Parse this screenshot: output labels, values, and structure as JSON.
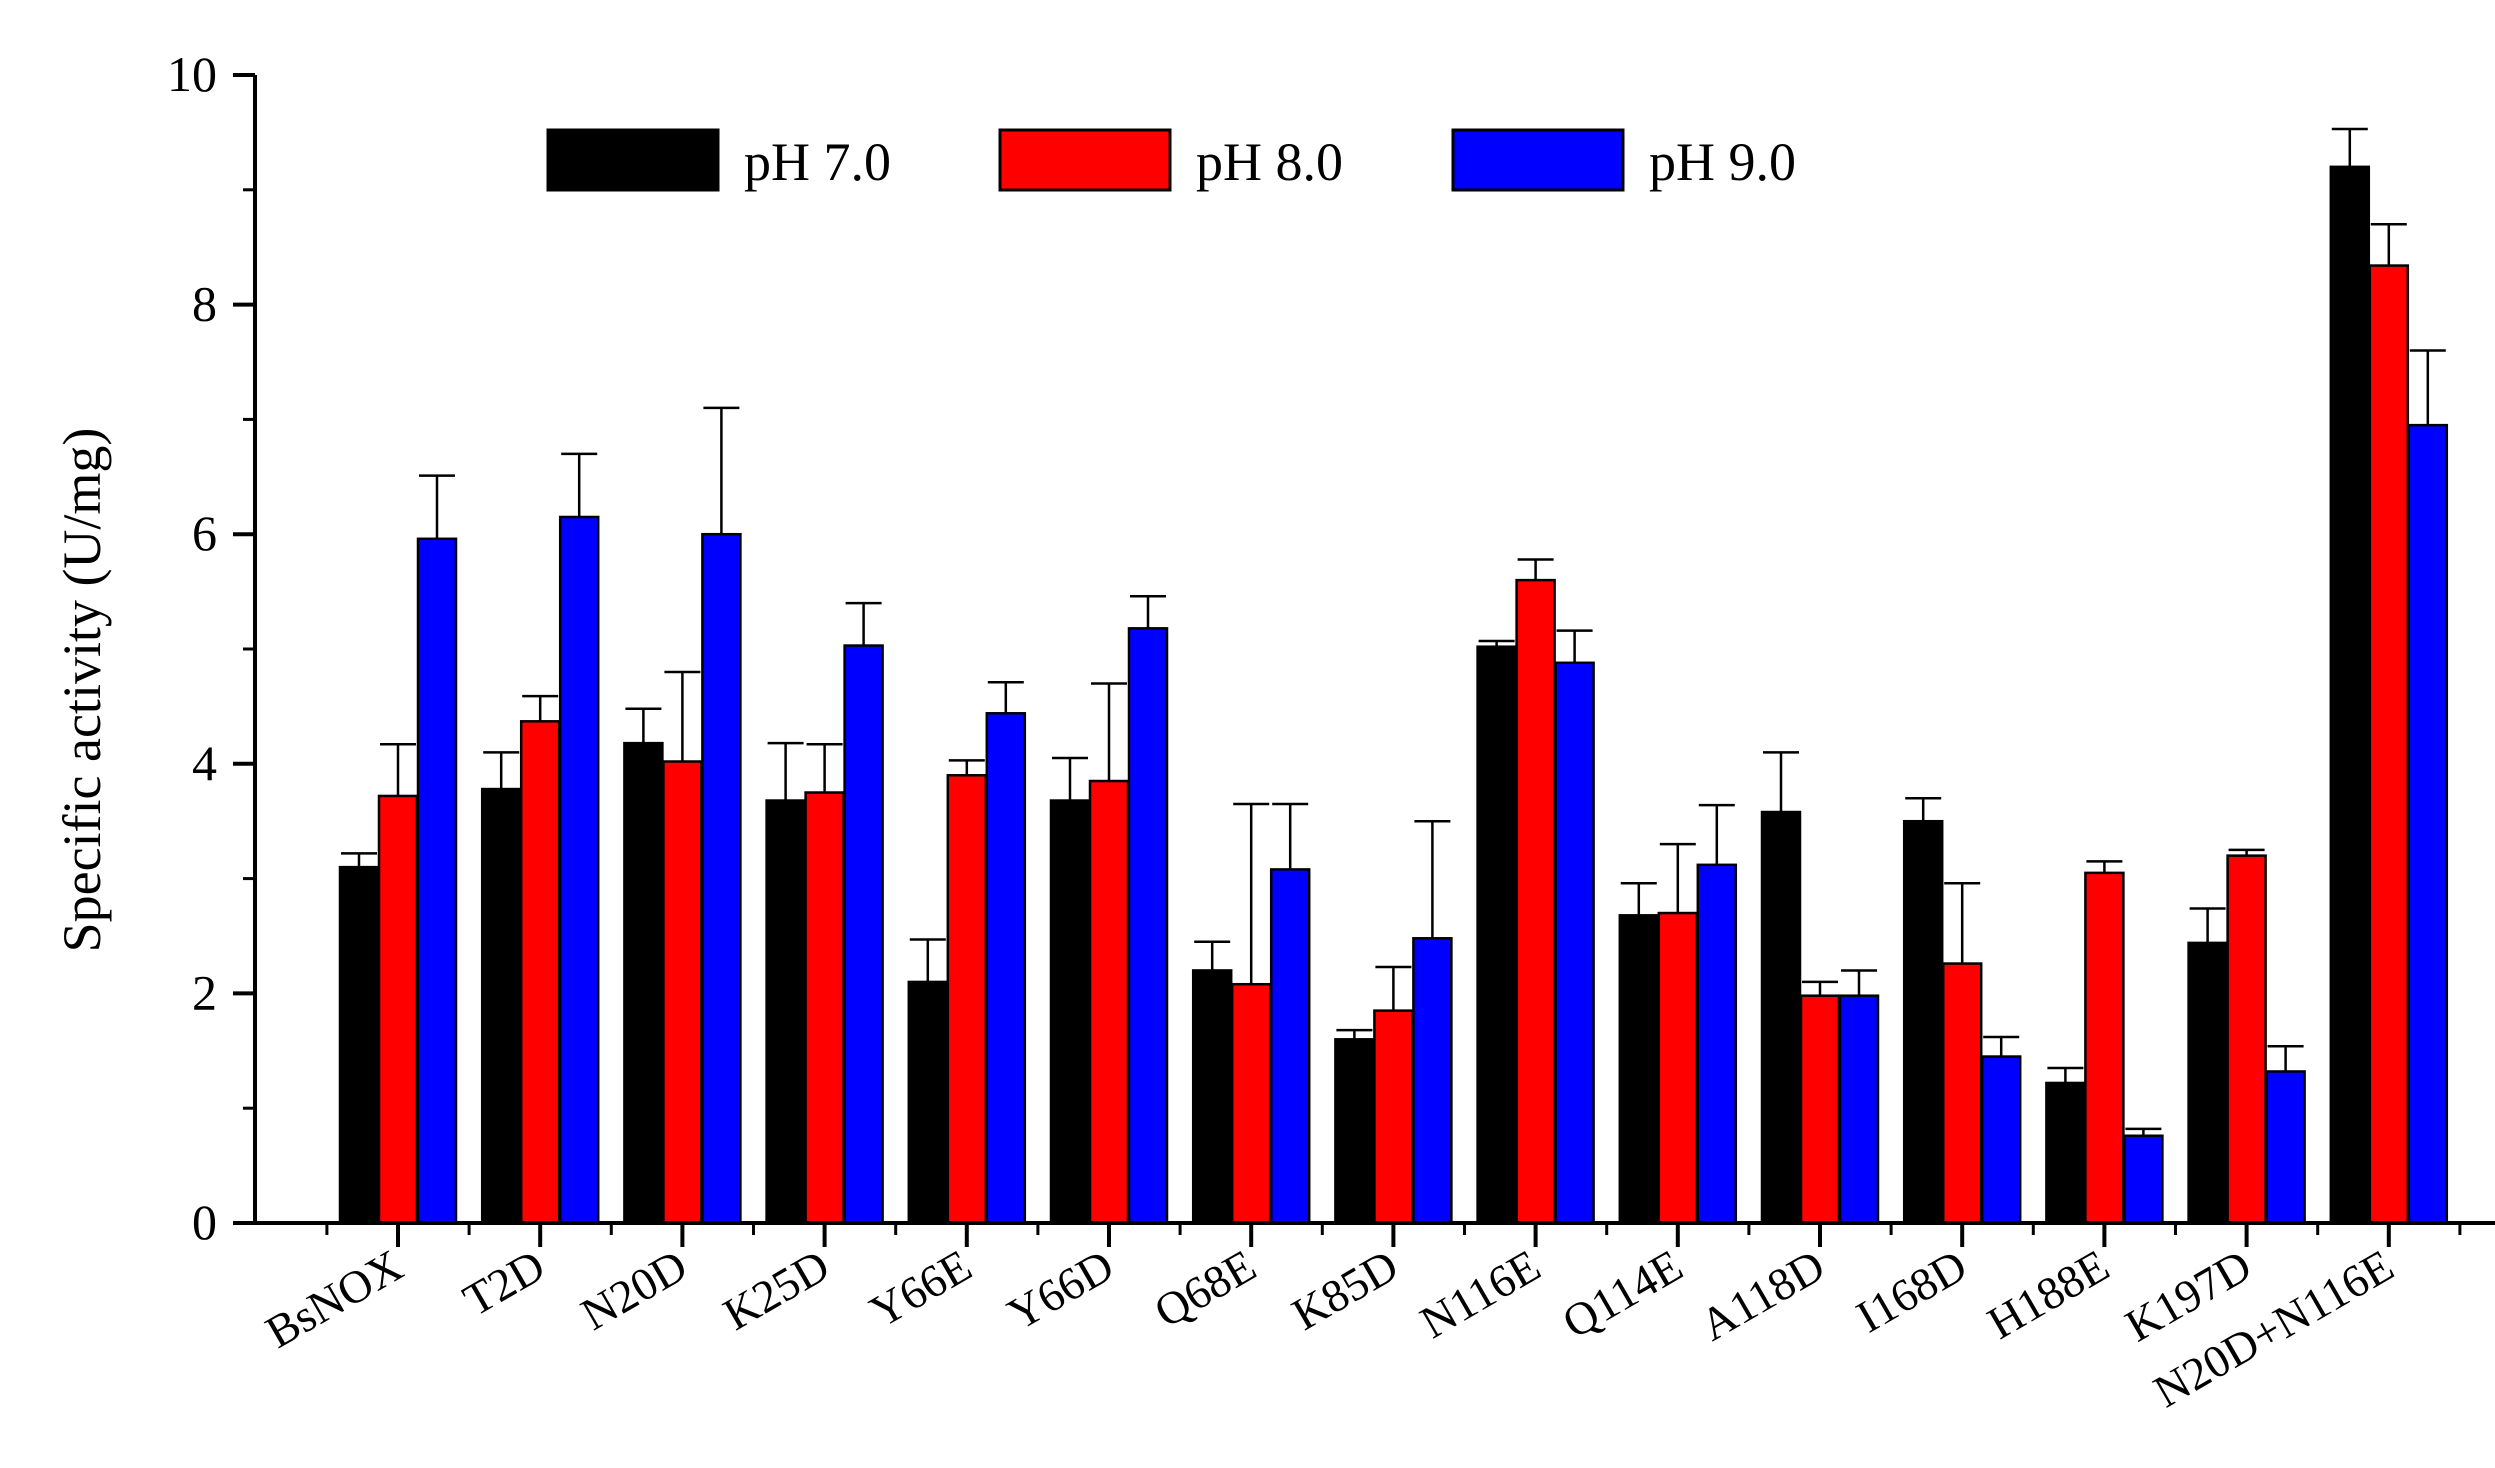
{
  "chart_data": {
    "type": "bar",
    "title": "",
    "xlabel": "",
    "ylabel": "Specific activity (U/mg)",
    "ylim": [
      0,
      10
    ],
    "yticks": [
      0,
      2,
      4,
      6,
      8,
      10
    ],
    "grid": false,
    "legend_position": "top-center",
    "categories": [
      "BsNOX",
      "T2D",
      "N20D",
      "K25D",
      "Y66E",
      "Y66D",
      "Q68E",
      "K85D",
      "N116E",
      "Q114E",
      "A118D",
      "I168D",
      "H188E",
      "K197D",
      "N20D+N116E"
    ],
    "series": [
      {
        "name": "pH 7.0",
        "color": "#000000",
        "values": [
          3.1,
          3.78,
          4.18,
          3.68,
          2.1,
          3.68,
          2.2,
          1.6,
          5.02,
          2.68,
          3.58,
          3.5,
          1.22,
          2.44,
          9.2
        ],
        "errors": [
          0.12,
          0.32,
          0.3,
          0.5,
          0.37,
          0.37,
          0.25,
          0.08,
          0.05,
          0.28,
          0.52,
          0.2,
          0.13,
          0.3,
          0.33
        ]
      },
      {
        "name": "pH 8.0",
        "color": "#ff0000",
        "values": [
          3.72,
          4.37,
          4.02,
          3.75,
          3.9,
          3.85,
          2.08,
          1.85,
          5.6,
          2.7,
          1.98,
          2.26,
          3.05,
          3.2,
          8.34
        ]
      },
      {
        "name": "pH 9.0",
        "color": "#0000ff",
        "values": [
          5.96,
          6.15,
          6.0,
          5.03,
          4.44,
          5.18,
          3.08,
          2.48,
          4.88,
          3.12,
          1.98,
          1.45,
          0.76,
          1.32,
          6.95
        ]
      }
    ]
  }
}
